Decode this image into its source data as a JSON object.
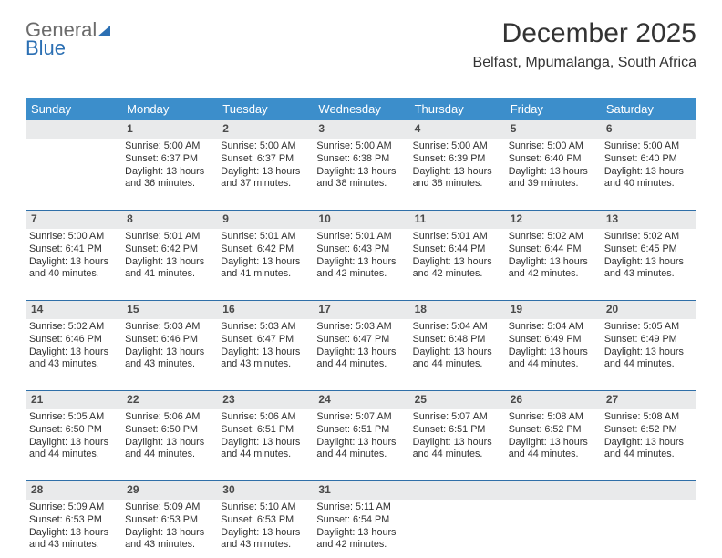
{
  "logo": {
    "line1": "General",
    "line2": "Blue"
  },
  "header": {
    "title": "December 2025",
    "location": "Belfast, Mpumalanga, South Africa"
  },
  "colors": {
    "header_bar": "#3c8ecb",
    "daynum_bg": "#e9eaeb",
    "rule": "#2f6fa8",
    "text": "#333333",
    "logo_blue": "#2b6fb3"
  },
  "dow": [
    "Sunday",
    "Monday",
    "Tuesday",
    "Wednesday",
    "Thursday",
    "Friday",
    "Saturday"
  ],
  "weeks": [
    {
      "nums": [
        "",
        "1",
        "2",
        "3",
        "4",
        "5",
        "6"
      ],
      "cells": [
        {
          "sunrise": "",
          "sunset": "",
          "daylight": ""
        },
        {
          "sunrise": "Sunrise: 5:00 AM",
          "sunset": "Sunset: 6:37 PM",
          "daylight": "Daylight: 13 hours and 36 minutes."
        },
        {
          "sunrise": "Sunrise: 5:00 AM",
          "sunset": "Sunset: 6:37 PM",
          "daylight": "Daylight: 13 hours and 37 minutes."
        },
        {
          "sunrise": "Sunrise: 5:00 AM",
          "sunset": "Sunset: 6:38 PM",
          "daylight": "Daylight: 13 hours and 38 minutes."
        },
        {
          "sunrise": "Sunrise: 5:00 AM",
          "sunset": "Sunset: 6:39 PM",
          "daylight": "Daylight: 13 hours and 38 minutes."
        },
        {
          "sunrise": "Sunrise: 5:00 AM",
          "sunset": "Sunset: 6:40 PM",
          "daylight": "Daylight: 13 hours and 39 minutes."
        },
        {
          "sunrise": "Sunrise: 5:00 AM",
          "sunset": "Sunset: 6:40 PM",
          "daylight": "Daylight: 13 hours and 40 minutes."
        }
      ]
    },
    {
      "nums": [
        "7",
        "8",
        "9",
        "10",
        "11",
        "12",
        "13"
      ],
      "cells": [
        {
          "sunrise": "Sunrise: 5:00 AM",
          "sunset": "Sunset: 6:41 PM",
          "daylight": "Daylight: 13 hours and 40 minutes."
        },
        {
          "sunrise": "Sunrise: 5:01 AM",
          "sunset": "Sunset: 6:42 PM",
          "daylight": "Daylight: 13 hours and 41 minutes."
        },
        {
          "sunrise": "Sunrise: 5:01 AM",
          "sunset": "Sunset: 6:42 PM",
          "daylight": "Daylight: 13 hours and 41 minutes."
        },
        {
          "sunrise": "Sunrise: 5:01 AM",
          "sunset": "Sunset: 6:43 PM",
          "daylight": "Daylight: 13 hours and 42 minutes."
        },
        {
          "sunrise": "Sunrise: 5:01 AM",
          "sunset": "Sunset: 6:44 PM",
          "daylight": "Daylight: 13 hours and 42 minutes."
        },
        {
          "sunrise": "Sunrise: 5:02 AM",
          "sunset": "Sunset: 6:44 PM",
          "daylight": "Daylight: 13 hours and 42 minutes."
        },
        {
          "sunrise": "Sunrise: 5:02 AM",
          "sunset": "Sunset: 6:45 PM",
          "daylight": "Daylight: 13 hours and 43 minutes."
        }
      ]
    },
    {
      "nums": [
        "14",
        "15",
        "16",
        "17",
        "18",
        "19",
        "20"
      ],
      "cells": [
        {
          "sunrise": "Sunrise: 5:02 AM",
          "sunset": "Sunset: 6:46 PM",
          "daylight": "Daylight: 13 hours and 43 minutes."
        },
        {
          "sunrise": "Sunrise: 5:03 AM",
          "sunset": "Sunset: 6:46 PM",
          "daylight": "Daylight: 13 hours and 43 minutes."
        },
        {
          "sunrise": "Sunrise: 5:03 AM",
          "sunset": "Sunset: 6:47 PM",
          "daylight": "Daylight: 13 hours and 43 minutes."
        },
        {
          "sunrise": "Sunrise: 5:03 AM",
          "sunset": "Sunset: 6:47 PM",
          "daylight": "Daylight: 13 hours and 44 minutes."
        },
        {
          "sunrise": "Sunrise: 5:04 AM",
          "sunset": "Sunset: 6:48 PM",
          "daylight": "Daylight: 13 hours and 44 minutes."
        },
        {
          "sunrise": "Sunrise: 5:04 AM",
          "sunset": "Sunset: 6:49 PM",
          "daylight": "Daylight: 13 hours and 44 minutes."
        },
        {
          "sunrise": "Sunrise: 5:05 AM",
          "sunset": "Sunset: 6:49 PM",
          "daylight": "Daylight: 13 hours and 44 minutes."
        }
      ]
    },
    {
      "nums": [
        "21",
        "22",
        "23",
        "24",
        "25",
        "26",
        "27"
      ],
      "cells": [
        {
          "sunrise": "Sunrise: 5:05 AM",
          "sunset": "Sunset: 6:50 PM",
          "daylight": "Daylight: 13 hours and 44 minutes."
        },
        {
          "sunrise": "Sunrise: 5:06 AM",
          "sunset": "Sunset: 6:50 PM",
          "daylight": "Daylight: 13 hours and 44 minutes."
        },
        {
          "sunrise": "Sunrise: 5:06 AM",
          "sunset": "Sunset: 6:51 PM",
          "daylight": "Daylight: 13 hours and 44 minutes."
        },
        {
          "sunrise": "Sunrise: 5:07 AM",
          "sunset": "Sunset: 6:51 PM",
          "daylight": "Daylight: 13 hours and 44 minutes."
        },
        {
          "sunrise": "Sunrise: 5:07 AM",
          "sunset": "Sunset: 6:51 PM",
          "daylight": "Daylight: 13 hours and 44 minutes."
        },
        {
          "sunrise": "Sunrise: 5:08 AM",
          "sunset": "Sunset: 6:52 PM",
          "daylight": "Daylight: 13 hours and 44 minutes."
        },
        {
          "sunrise": "Sunrise: 5:08 AM",
          "sunset": "Sunset: 6:52 PM",
          "daylight": "Daylight: 13 hours and 44 minutes."
        }
      ]
    },
    {
      "nums": [
        "28",
        "29",
        "30",
        "31",
        "",
        "",
        ""
      ],
      "cells": [
        {
          "sunrise": "Sunrise: 5:09 AM",
          "sunset": "Sunset: 6:53 PM",
          "daylight": "Daylight: 13 hours and 43 minutes."
        },
        {
          "sunrise": "Sunrise: 5:09 AM",
          "sunset": "Sunset: 6:53 PM",
          "daylight": "Daylight: 13 hours and 43 minutes."
        },
        {
          "sunrise": "Sunrise: 5:10 AM",
          "sunset": "Sunset: 6:53 PM",
          "daylight": "Daylight: 13 hours and 43 minutes."
        },
        {
          "sunrise": "Sunrise: 5:11 AM",
          "sunset": "Sunset: 6:54 PM",
          "daylight": "Daylight: 13 hours and 42 minutes."
        },
        {
          "sunrise": "",
          "sunset": "",
          "daylight": ""
        },
        {
          "sunrise": "",
          "sunset": "",
          "daylight": ""
        },
        {
          "sunrise": "",
          "sunset": "",
          "daylight": ""
        }
      ]
    }
  ]
}
